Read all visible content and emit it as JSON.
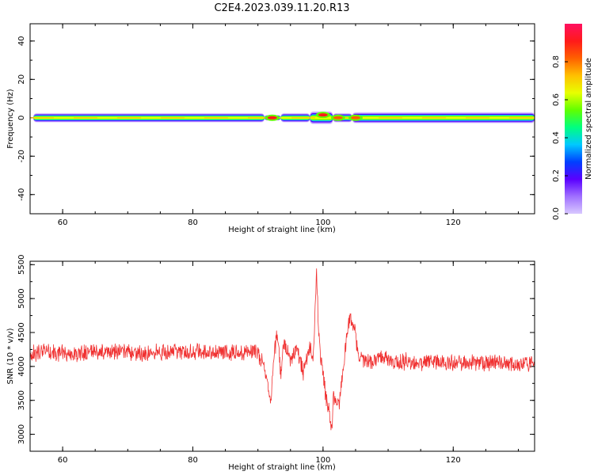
{
  "title": "C2E4.2023.039.11.20.R13",
  "colors": {
    "snr_line": "#f03030",
    "ridge": "#ff2a1a"
  },
  "colormap": [
    "#d8c8ff",
    "#a070ff",
    "#5a00ff",
    "#0040ff",
    "#00c8ff",
    "#00ff80",
    "#60ff00",
    "#e8ff00",
    "#ffc000",
    "#ff6000",
    "#ff1a1a",
    "#ff1060"
  ],
  "chart_data": [
    {
      "type": "heatmap",
      "xlabel": "Height of straight line (km)",
      "ylabel": "Frequency (Hz)",
      "xlim": [
        55,
        132.5
      ],
      "ylim": [
        -50,
        49
      ],
      "xticks": [
        60,
        80,
        100,
        120
      ],
      "yticks": [
        -40,
        -20,
        0,
        20,
        40
      ],
      "colorbar": {
        "label": "Normalized spectral amplitude",
        "range": [
          0,
          1
        ],
        "ticks": [
          "0.0",
          "0.2",
          "0.4",
          "0.6",
          "0.8"
        ]
      },
      "ridge_segments": [
        {
          "x0": 55.5,
          "x1": 91.0,
          "halfwidth_hz": 2.5
        },
        {
          "x0": 91.0,
          "x1": 93.5,
          "halfwidth_hz": 1.5
        },
        {
          "x0": 93.5,
          "x1": 98.0,
          "halfwidth_hz": 2.5
        },
        {
          "x0": 98.0,
          "x1": 101.5,
          "halfwidth_hz": 3.5
        },
        {
          "x0": 101.5,
          "x1": 104.5,
          "halfwidth_hz": 2.5
        },
        {
          "x0": 104.5,
          "x1": 132.5,
          "halfwidth_hz": 3.0
        }
      ],
      "hotspots": [
        {
          "x": 92.2,
          "y": 0,
          "amp": 1.0
        },
        {
          "x": 100.0,
          "y": 1.5,
          "amp": 1.0
        },
        {
          "x": 102.3,
          "y": 0,
          "amp": 0.95
        },
        {
          "x": 105.0,
          "y": 0,
          "amp": 0.9
        }
      ]
    },
    {
      "type": "line",
      "xlabel": "Height of straight line (km)",
      "ylabel": "SNR (10 * v/v)",
      "xlim": [
        55,
        132.5
      ],
      "ylim": [
        2750,
        5550
      ],
      "xticks": [
        60,
        80,
        100,
        120
      ],
      "yticks": [
        3000,
        3500,
        4000,
        4500,
        5000,
        5500
      ],
      "series": [
        {
          "x": [
            55,
            57,
            59,
            61,
            63,
            65,
            67,
            69,
            71,
            73,
            75,
            77,
            79,
            81,
            83,
            85,
            87,
            89,
            90,
            91,
            91.5,
            92,
            92.5,
            93,
            93.5,
            94,
            95,
            96,
            97,
            98,
            98.5,
            99,
            99.3,
            99.6,
            100,
            100.5,
            101,
            101.3,
            101.6,
            102,
            102.5,
            103,
            103.5,
            104,
            104.5,
            105,
            105.5,
            106,
            107,
            109,
            111,
            113,
            115,
            117,
            119,
            121,
            123,
            125,
            127,
            129,
            131,
            132.5
          ],
          "y": [
            4180,
            4220,
            4200,
            4210,
            4190,
            4230,
            4210,
            4220,
            4200,
            4180,
            4210,
            4230,
            4200,
            4220,
            4190,
            4210,
            4200,
            4230,
            4180,
            4000,
            3700,
            3500,
            4200,
            4500,
            3900,
            4350,
            4100,
            4250,
            3900,
            4300,
            4100,
            5400,
            4600,
            4100,
            3900,
            3500,
            3300,
            3000,
            3600,
            3400,
            3500,
            3900,
            4300,
            4650,
            4700,
            4450,
            4150,
            4100,
            4080,
            4120,
            4060,
            4080,
            4050,
            4070,
            4040,
            4060,
            4050,
            4030,
            4060,
            4040,
            4050,
            4060
          ],
          "noise": 140
        }
      ]
    }
  ]
}
